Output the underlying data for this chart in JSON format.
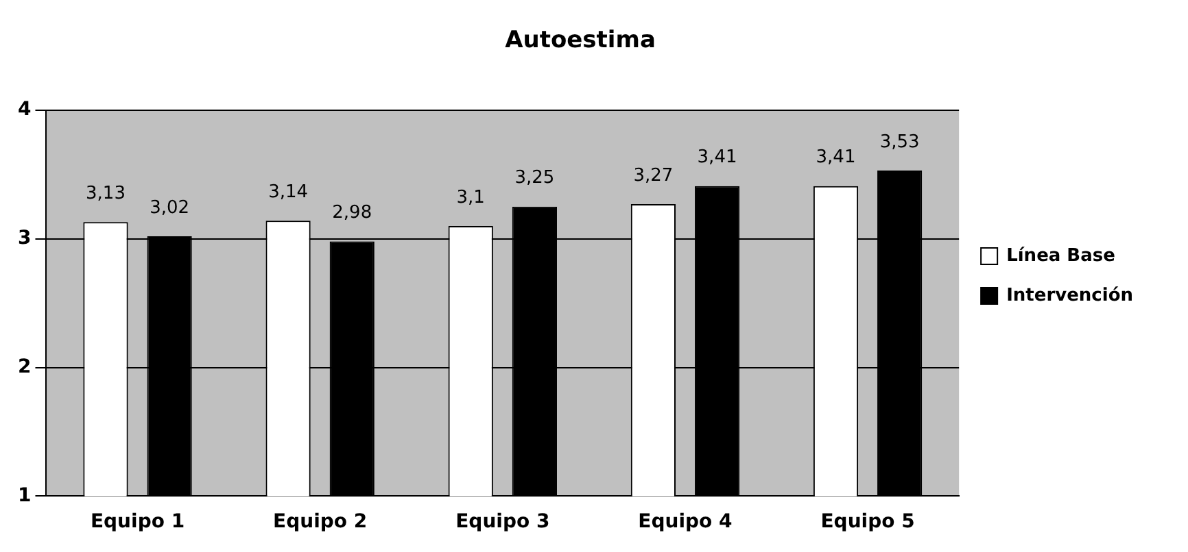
{
  "chart_data": {
    "type": "bar",
    "title": "Autoestima",
    "categories": [
      "Equipo 1",
      "Equipo 2",
      "Equipo 3",
      "Equipo 4",
      "Equipo 5"
    ],
    "series": [
      {
        "name": "Línea Base",
        "color": "#ffffff",
        "values": [
          3.13,
          3.14,
          3.1,
          3.27,
          3.41
        ],
        "value_labels": [
          "3,13",
          "3,14",
          "3,1",
          "3,27",
          "3,41"
        ]
      },
      {
        "name": "Intervención",
        "color": "#000000",
        "values": [
          3.02,
          2.98,
          3.25,
          3.41,
          3.53
        ],
        "value_labels": [
          "3,02",
          "2,98",
          "3,25",
          "3,41",
          "3,53"
        ]
      }
    ],
    "ylim": [
      1,
      4
    ],
    "yticks": [
      1,
      2,
      3,
      4
    ],
    "grid": "y",
    "legend": "right"
  }
}
